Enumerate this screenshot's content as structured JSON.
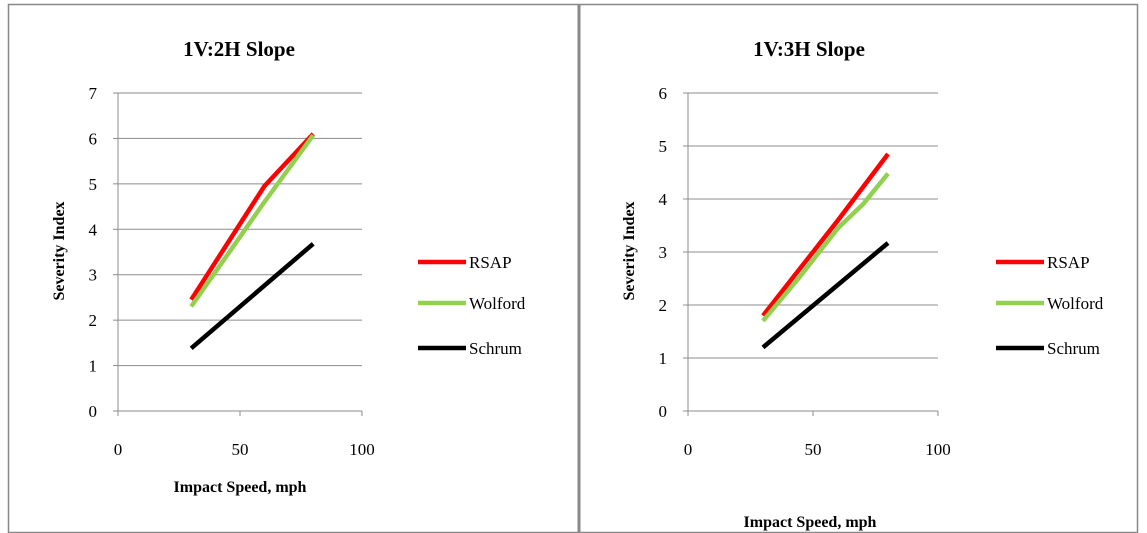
{
  "chart_data": [
    {
      "type": "line",
      "title": "1V:2H Slope",
      "xlabel": "Impact Speed, mph",
      "ylabel": "Severity Index",
      "xlim": [
        0,
        100
      ],
      "ylim": [
        0,
        7
      ],
      "x_ticks": [
        0,
        50,
        100
      ],
      "y_ticks": [
        0,
        1,
        2,
        3,
        4,
        5,
        6,
        7
      ],
      "grid": "horizontal",
      "legend_position": "right",
      "series": [
        {
          "name": "RSAP",
          "color": "#ff0000",
          "x": [
            30,
            45,
            60,
            80
          ],
          "y": [
            2.45,
            3.7,
            4.95,
            6.1
          ]
        },
        {
          "name": "Wolford",
          "color": "#92d050",
          "x": [
            30,
            45,
            60,
            80
          ],
          "y": [
            2.3,
            3.45,
            4.6,
            6.07
          ]
        },
        {
          "name": "Schrum",
          "color": "#000000",
          "x": [
            30,
            80
          ],
          "y": [
            1.38,
            3.68
          ]
        }
      ]
    },
    {
      "type": "line",
      "title": "1V:3H Slope",
      "xlabel": "Impact Speed, mph",
      "ylabel": "Severity Index",
      "xlim": [
        0,
        100
      ],
      "ylim": [
        0,
        6
      ],
      "x_ticks": [
        0,
        50,
        100
      ],
      "y_ticks": [
        0,
        1,
        2,
        3,
        4,
        5,
        6
      ],
      "grid": "horizontal",
      "legend_position": "right",
      "series": [
        {
          "name": "RSAP",
          "color": "#ff0000",
          "x": [
            30,
            45,
            60,
            80
          ],
          "y": [
            1.8,
            2.7,
            3.6,
            4.85
          ]
        },
        {
          "name": "Wolford",
          "color": "#92d050",
          "x": [
            30,
            45,
            60,
            70,
            80
          ],
          "y": [
            1.7,
            2.55,
            3.45,
            3.9,
            4.48
          ]
        },
        {
          "name": "Schrum",
          "color": "#000000",
          "x": [
            30,
            80
          ],
          "y": [
            1.2,
            3.17
          ]
        }
      ]
    }
  ]
}
